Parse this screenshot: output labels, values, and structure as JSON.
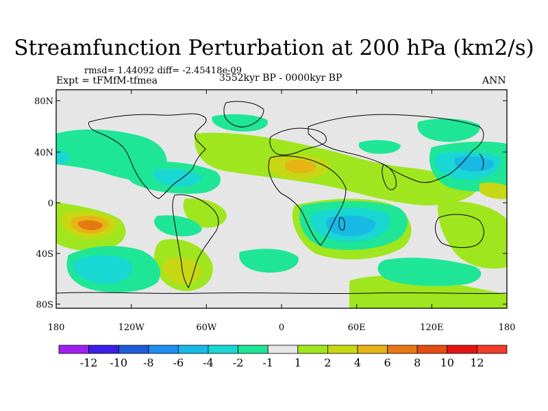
{
  "title": "Streamfunction Perturbation at 200 hPa (km2/s)",
  "stats": "rmsd= 1.44092  diff= -2.45418e-09",
  "experiment": "Expt = tFMfM-tfmea",
  "period": "3552kyr BP - 0000kyr BP",
  "season": "ANN",
  "lat_labels": [
    "80N",
    "40N",
    "0",
    "40S",
    "80S"
  ],
  "lon_labels": [
    "180",
    "120W",
    "60W",
    "0",
    "60E",
    "120E",
    "180"
  ],
  "colorbar": {
    "labels": [
      "-12",
      "-10",
      "-8",
      "-6",
      "-4",
      "-2",
      "-1",
      "1",
      "2",
      "4",
      "6",
      "8",
      "10",
      "12"
    ],
    "colors": [
      "#a020f0",
      "#3c1ee6",
      "#1e5adc",
      "#1e8cf0",
      "#19b9e6",
      "#19d7d2",
      "#1ee696",
      "#e6e6e6",
      "#a0e61e",
      "#c8d714",
      "#e6b414",
      "#e67814",
      "#e64b14",
      "#e61414",
      "#f03c28"
    ]
  },
  "colors": {
    "land_outline": "#000000",
    "background": "#e6e6e6"
  }
}
